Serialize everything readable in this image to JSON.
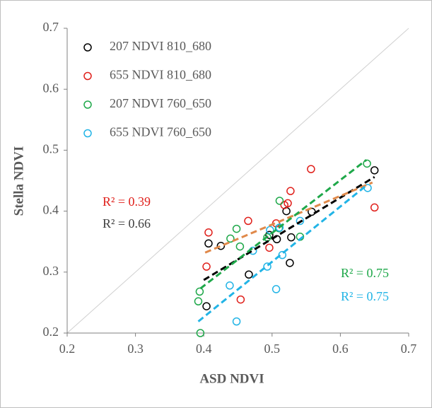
{
  "chart_data": {
    "type": "scatter",
    "x_label": "ASD NDVI",
    "y_label": "Stella NDVI",
    "xlim": [
      0.2,
      0.7
    ],
    "ylim": [
      0.2,
      0.7
    ],
    "xticks": [
      0.2,
      0.3,
      0.4,
      0.5,
      0.6,
      0.7
    ],
    "yticks": [
      0.2,
      0.3,
      0.4,
      0.5,
      0.6,
      0.7
    ],
    "identity_line": true,
    "series": [
      {
        "name": "207 NDVI 810_680",
        "color": "#000000",
        "x": [
          0.65,
          0.558,
          0.521,
          0.528,
          0.526,
          0.496,
          0.507,
          0.425,
          0.466,
          0.407,
          0.404
        ],
        "y": [
          0.467,
          0.399,
          0.4,
          0.357,
          0.315,
          0.361,
          0.354,
          0.343,
          0.296,
          0.347,
          0.244
        ],
        "trendline": {
          "color": "#000000",
          "x": [
            0.4,
            0.65
          ],
          "y": [
            0.287,
            0.456
          ]
        }
      },
      {
        "name": "655 NDVI 810_680",
        "color": "#e0201b",
        "x": [
          0.557,
          0.65,
          0.527,
          0.523,
          0.518,
          0.506,
          0.465,
          0.407,
          0.496,
          0.404,
          0.454
        ],
        "y": [
          0.469,
          0.406,
          0.433,
          0.413,
          0.41,
          0.38,
          0.384,
          0.365,
          0.34,
          0.309,
          0.255
        ],
        "trendline": {
          "color": "#e0894a",
          "x": [
            0.402,
            0.647
          ],
          "y": [
            0.332,
            0.447
          ]
        }
      },
      {
        "name": "207 NDVI 760_650",
        "color": "#1fa84a",
        "x": [
          0.639,
          0.511,
          0.448,
          0.439,
          0.541,
          0.51,
          0.493,
          0.453,
          0.394,
          0.392,
          0.395
        ],
        "y": [
          0.478,
          0.417,
          0.371,
          0.355,
          0.358,
          0.372,
          0.357,
          0.342,
          0.268,
          0.252,
          0.2
        ],
        "trendline": {
          "color": "#1fa84a",
          "x": [
            0.395,
            0.638
          ],
          "y": [
            0.273,
            0.484
          ]
        }
      },
      {
        "name": "655 NDVI 760_650",
        "color": "#22b4e6",
        "x": [
          0.64,
          0.511,
          0.541,
          0.515,
          0.493,
          0.438,
          0.506,
          0.448,
          0.497,
          0.472
        ],
        "y": [
          0.438,
          0.373,
          0.384,
          0.328,
          0.309,
          0.278,
          0.272,
          0.219,
          0.369,
          0.335
        ],
        "trendline": {
          "color": "#22b4e6",
          "x": [
            0.392,
            0.638
          ],
          "y": [
            0.219,
            0.442
          ]
        }
      }
    ],
    "annotations": [
      {
        "text": "R² = 0.39",
        "color": "#e0201b"
      },
      {
        "text": "R² = 0.66",
        "color": "#404040"
      },
      {
        "text": "R² = 0.75",
        "color": "#1fa84a"
      },
      {
        "text": "R² = 0.75",
        "color": "#22b4e6"
      }
    ]
  }
}
